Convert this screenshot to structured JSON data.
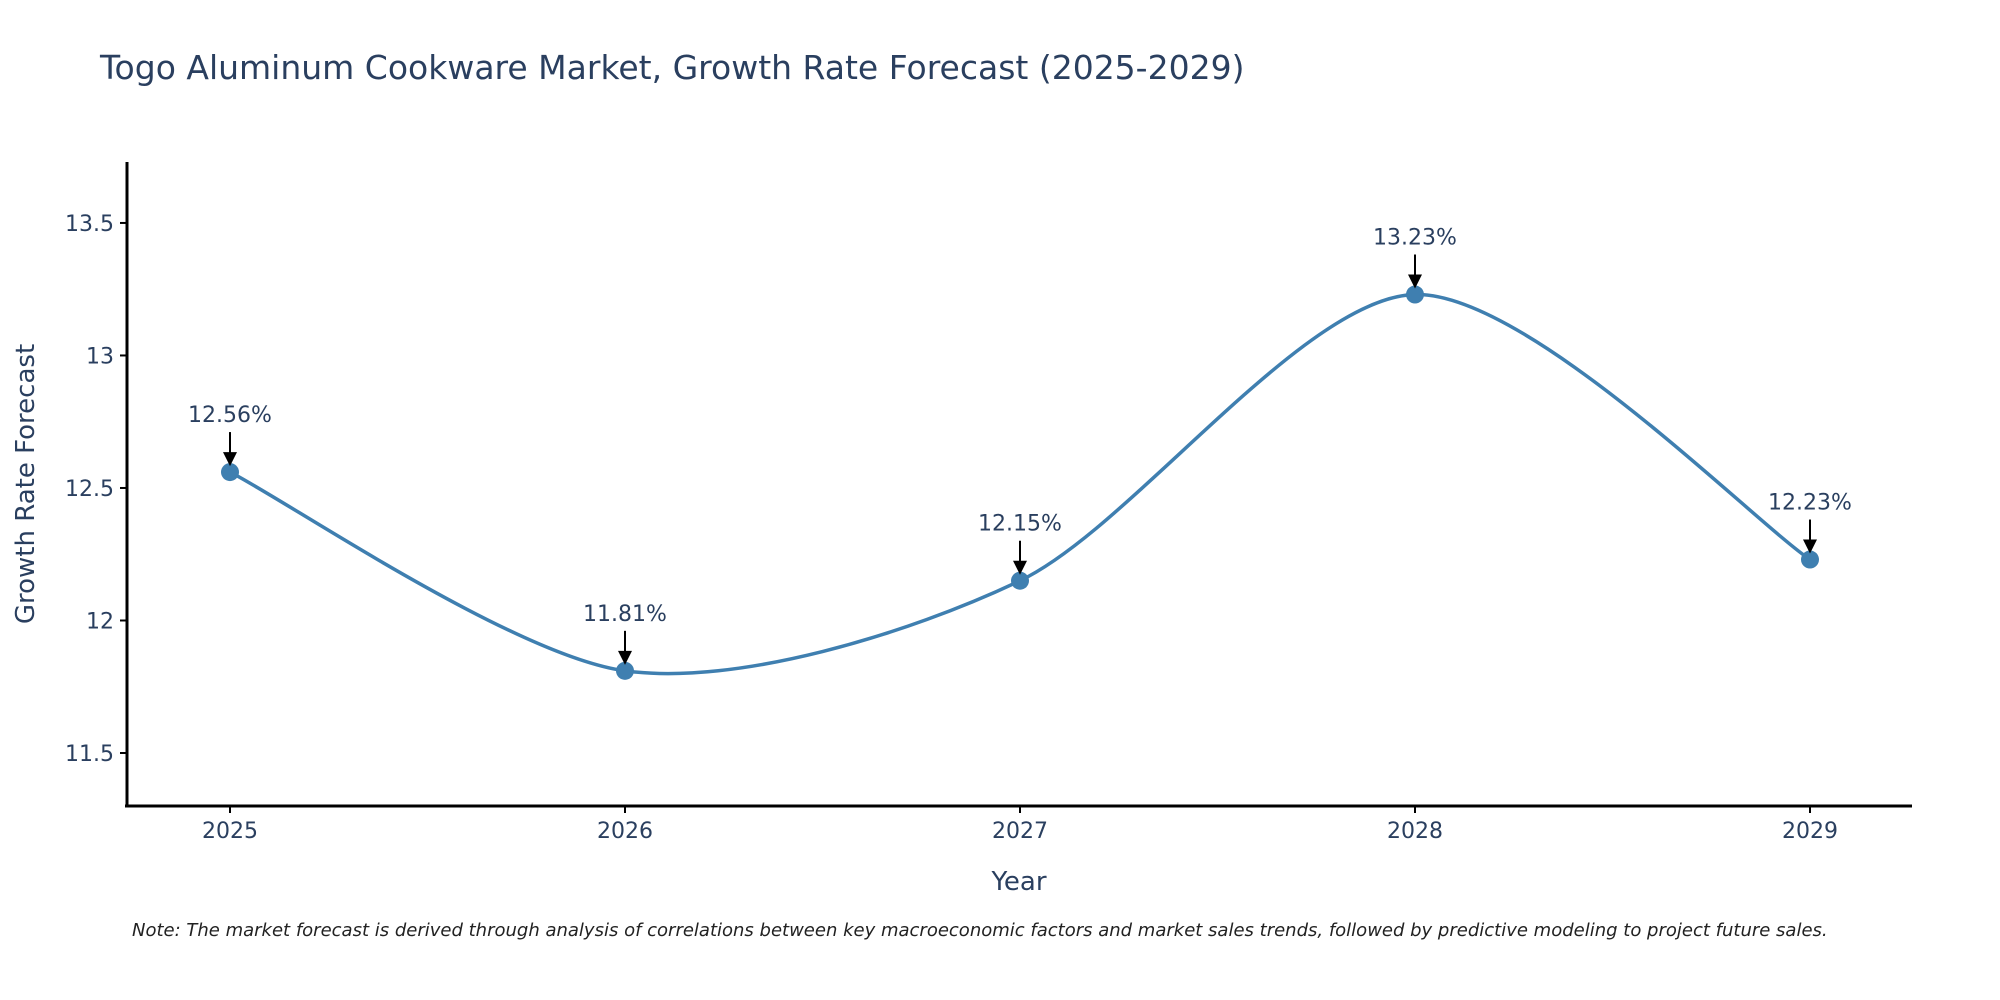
{
  "chart_data": {
    "type": "line",
    "title": "Togo Aluminum Cookware Market, Growth Rate Forecast (2025-2029)",
    "xlabel": "Year",
    "ylabel": "Growth Rate Forecast",
    "categories": [
      "2025",
      "2026",
      "2027",
      "2028",
      "2029"
    ],
    "series": [
      {
        "name": "Growth Rate Forecast",
        "values": [
          12.56,
          11.81,
          12.15,
          13.23,
          12.23
        ],
        "color": "#3f7fb0"
      }
    ],
    "data_labels": [
      "12.56%",
      "11.81%",
      "12.15%",
      "13.23%",
      "12.23%"
    ],
    "yticks": [
      11.5,
      12,
      12.5,
      13,
      13.5
    ],
    "ytick_labels": [
      "11.5",
      "12",
      "12.5",
      "13",
      "13.5"
    ],
    "ylim": [
      11.3,
      13.73
    ],
    "grid": false,
    "line_shape": "spline",
    "note": "Note: The market forecast is derived through analysis of correlations between key macroeconomic factors and market sales trends, followed by predictive modeling to project future sales."
  }
}
